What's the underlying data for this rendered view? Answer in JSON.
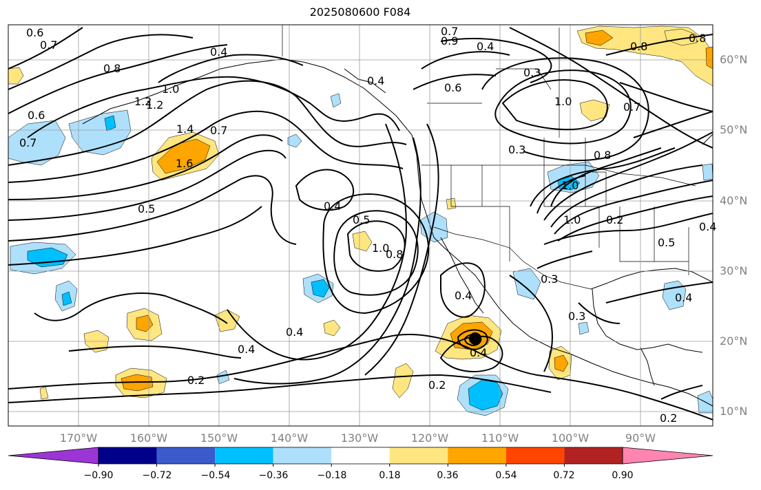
{
  "title": "2025080600 F084",
  "lat_labels": [
    "60°N",
    "50°N",
    "40°N",
    "30°N",
    "20°N",
    "10°N"
  ],
  "lon_labels": [
    "170°W",
    "160°W",
    "150°W",
    "140°W",
    "130°W",
    "120°W",
    "110°W",
    "100°W",
    "90°W"
  ],
  "colorbar": {
    "colors": [
      "#9b35d4",
      "#00008b",
      "#3b5bcc",
      "#00bfff",
      "#aee0fb",
      "#ffffff",
      "#ffe680",
      "#ffa500",
      "#ff4500",
      "#b22222",
      "#ff85b0"
    ],
    "tick_labels": [
      "−0.90",
      "−0.72",
      "−0.54",
      "−0.36",
      "−0.18",
      "0.18",
      "0.36",
      "0.54",
      "0.72",
      "0.90"
    ]
  },
  "contour_labels": {
    "c1": "0.6",
    "c2": "0.7",
    "c3": "0.4",
    "c4": "0.8",
    "c5": "0.4",
    "c6": "1.0",
    "c7": "1.2",
    "c8": "0.6",
    "c9": "0.7",
    "c10": "1.4",
    "c11": "1.6",
    "c12": "0.7",
    "c13": "0.5",
    "c14": "0.4",
    "c15": "1.0",
    "c16": "0.8",
    "c17": "0.4",
    "c18": "0.4",
    "c19": "0.2",
    "c20": "0.7",
    "c21": "0.9",
    "c22": "0.4",
    "c23": "0.6",
    "c24": "0.3",
    "c25": "1.0",
    "c26": "0.3",
    "c27": "0.8",
    "c28": "0.7",
    "c29": "0.8",
    "c30": "1.0",
    "c31": "0.2",
    "c32": "0.4",
    "c33": "0.4",
    "c34": "0.2",
    "c35": "0.3",
    "c36": "0.3",
    "c37": "0.4",
    "c38": "0.5",
    "c39": "0.2",
    "c40": "0.8",
    "c41": "0.4",
    "c42": "0.5",
    "c43": "1.0",
    "c44": "1.2"
  }
}
